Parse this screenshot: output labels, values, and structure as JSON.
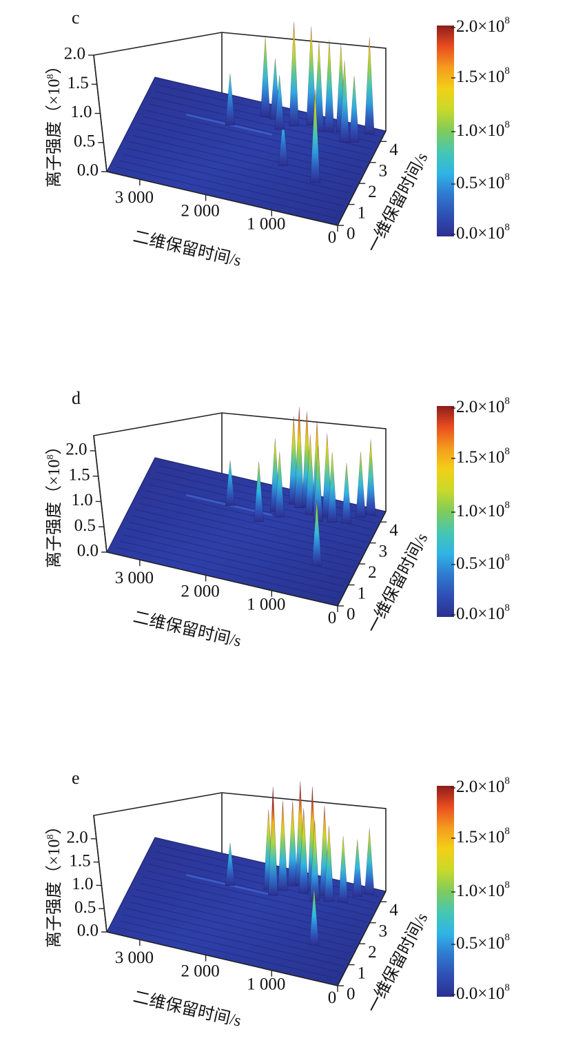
{
  "colorbar": {
    "colors": [
      "#2c2f8f",
      "#2f4fb5",
      "#2f7ad0",
      "#30b4e6",
      "#46c7b2",
      "#7fcb5c",
      "#c9d92a",
      "#f2d018",
      "#f59c1e",
      "#e94e1f",
      "#8e1c1c"
    ],
    "ticks": [
      {
        "mantissa": "2.0",
        "times": "×10",
        "exp": "8"
      },
      {
        "mantissa": "1.5",
        "times": "×10",
        "exp": "8"
      },
      {
        "mantissa": "1.0",
        "times": "×10",
        "exp": "8"
      },
      {
        "mantissa": "0.5",
        "times": "×10",
        "exp": "8"
      },
      {
        "mantissa": "0.0",
        "times": "×10",
        "exp": "8"
      }
    ]
  },
  "chart_data": [
    {
      "type": "surface",
      "panel": "c",
      "xlabel": "二维保留时间/s",
      "ylabel": "一维保留时间/s",
      "zlabel": "离子强度（×10⁸）",
      "zlabel_parts": {
        "text": "离子强度（×10",
        "exp": "8",
        "close": "）"
      },
      "xticks": [
        "3 000",
        "2 000",
        "1 000",
        "0"
      ],
      "yticks": [
        "0",
        "1",
        "2",
        "3",
        "4"
      ],
      "zticks": [
        "2.0",
        "1.5",
        "1.0",
        "0.5",
        "0.0"
      ],
      "zlim": [
        0,
        2.0
      ],
      "colorbar_range": [
        0,
        200000000
      ],
      "peaks": [
        {
          "x": 1730,
          "y": 3.9,
          "z": 1.32
        },
        {
          "x": 1580,
          "y": 3.9,
          "z": 1.0
        },
        {
          "x": 2150,
          "y": 3.2,
          "z": 0.85
        },
        {
          "x": 1280,
          "y": 3.8,
          "z": 1.72
        },
        {
          "x": 1050,
          "y": 4.0,
          "z": 1.63
        },
        {
          "x": 900,
          "y": 3.8,
          "z": 1.48
        },
        {
          "x": 760,
          "y": 3.9,
          "z": 1.52
        },
        {
          "x": 600,
          "y": 4.0,
          "z": 1.45
        },
        {
          "x": 480,
          "y": 3.6,
          "z": 1.35
        },
        {
          "x": 600,
          "y": 1.6,
          "z": 1.55
        },
        {
          "x": 350,
          "y": 3.7,
          "z": 1.1
        },
        {
          "x": 1150,
          "y": 2.0,
          "z": 0.8
        },
        {
          "x": 1450,
          "y": 3.5,
          "z": 0.9
        },
        {
          "x": 200,
          "y": 4.2,
          "z": 1.6
        }
      ]
    },
    {
      "type": "surface",
      "panel": "d",
      "xlabel": "二维保留时间/s",
      "ylabel": "一维保留时间/s",
      "zlabel": "离子强度（×10⁸）",
      "zlabel_parts": {
        "text": "离子强度（×10",
        "exp": "8",
        "close": "）"
      },
      "xticks": [
        "3 000",
        "2 000",
        "1 000",
        "0"
      ],
      "yticks": [
        "0",
        "1",
        "2",
        "3",
        "4"
      ],
      "zticks": [
        "2.0",
        "1.5",
        "1.0",
        "0.5",
        "0.0"
      ],
      "zlim": [
        0,
        2.3
      ],
      "colorbar_range": [
        0,
        200000000
      ],
      "peaks": [
        {
          "x": 1500,
          "y": 3.4,
          "z": 1.45
        },
        {
          "x": 1400,
          "y": 3.2,
          "z": 1.3
        },
        {
          "x": 1300,
          "y": 3.9,
          "z": 1.75
        },
        {
          "x": 1200,
          "y": 3.8,
          "z": 2.0
        },
        {
          "x": 1100,
          "y": 3.9,
          "z": 1.9
        },
        {
          "x": 1000,
          "y": 3.6,
          "z": 1.6
        },
        {
          "x": 930,
          "y": 3.8,
          "z": 1.8
        },
        {
          "x": 850,
          "y": 3.4,
          "z": 1.5
        },
        {
          "x": 760,
          "y": 3.7,
          "z": 1.65
        },
        {
          "x": 650,
          "y": 3.5,
          "z": 1.4
        },
        {
          "x": 560,
          "y": 1.5,
          "z": 1.3
        },
        {
          "x": 450,
          "y": 3.6,
          "z": 1.2
        },
        {
          "x": 1650,
          "y": 2.8,
          "z": 1.2
        },
        {
          "x": 2150,
          "y": 3.2,
          "z": 0.9
        },
        {
          "x": 300,
          "y": 4.0,
          "z": 1.3
        },
        {
          "x": 180,
          "y": 4.2,
          "z": 1.5
        }
      ]
    },
    {
      "type": "surface",
      "panel": "e",
      "xlabel": "二维保留时间/s",
      "ylabel": "一维保留时间/s",
      "zlabel": "离子强度（×10⁸）",
      "zlabel_parts": {
        "text": "离子强度（×10",
        "exp": "8",
        "close": "）"
      },
      "xticks": [
        "3 000",
        "2 000",
        "1 000",
        "0"
      ],
      "yticks": [
        "0",
        "1",
        "2",
        "3",
        "4"
      ],
      "zticks": [
        "2.0",
        "1.5",
        "1.0",
        "0.5",
        "0.0"
      ],
      "zlim": [
        0,
        2.5
      ],
      "colorbar_range": [
        0,
        200000000
      ],
      "peaks": [
        {
          "x": 1600,
          "y": 3.4,
          "z": 1.7
        },
        {
          "x": 1500,
          "y": 3.2,
          "z": 2.3
        },
        {
          "x": 1400,
          "y": 3.5,
          "z": 1.9
        },
        {
          "x": 1300,
          "y": 3.8,
          "z": 1.8
        },
        {
          "x": 1200,
          "y": 3.9,
          "z": 2.2
        },
        {
          "x": 1100,
          "y": 3.6,
          "z": 1.8
        },
        {
          "x": 1000,
          "y": 3.8,
          "z": 2.2
        },
        {
          "x": 900,
          "y": 3.4,
          "z": 1.7
        },
        {
          "x": 800,
          "y": 3.7,
          "z": 1.9
        },
        {
          "x": 700,
          "y": 3.5,
          "z": 1.6
        },
        {
          "x": 600,
          "y": 1.5,
          "z": 1.2
        },
        {
          "x": 500,
          "y": 3.6,
          "z": 1.4
        },
        {
          "x": 2150,
          "y": 3.2,
          "z": 0.9
        },
        {
          "x": 350,
          "y": 4.0,
          "z": 1.2
        },
        {
          "x": 200,
          "y": 4.2,
          "z": 1.4
        }
      ]
    }
  ]
}
